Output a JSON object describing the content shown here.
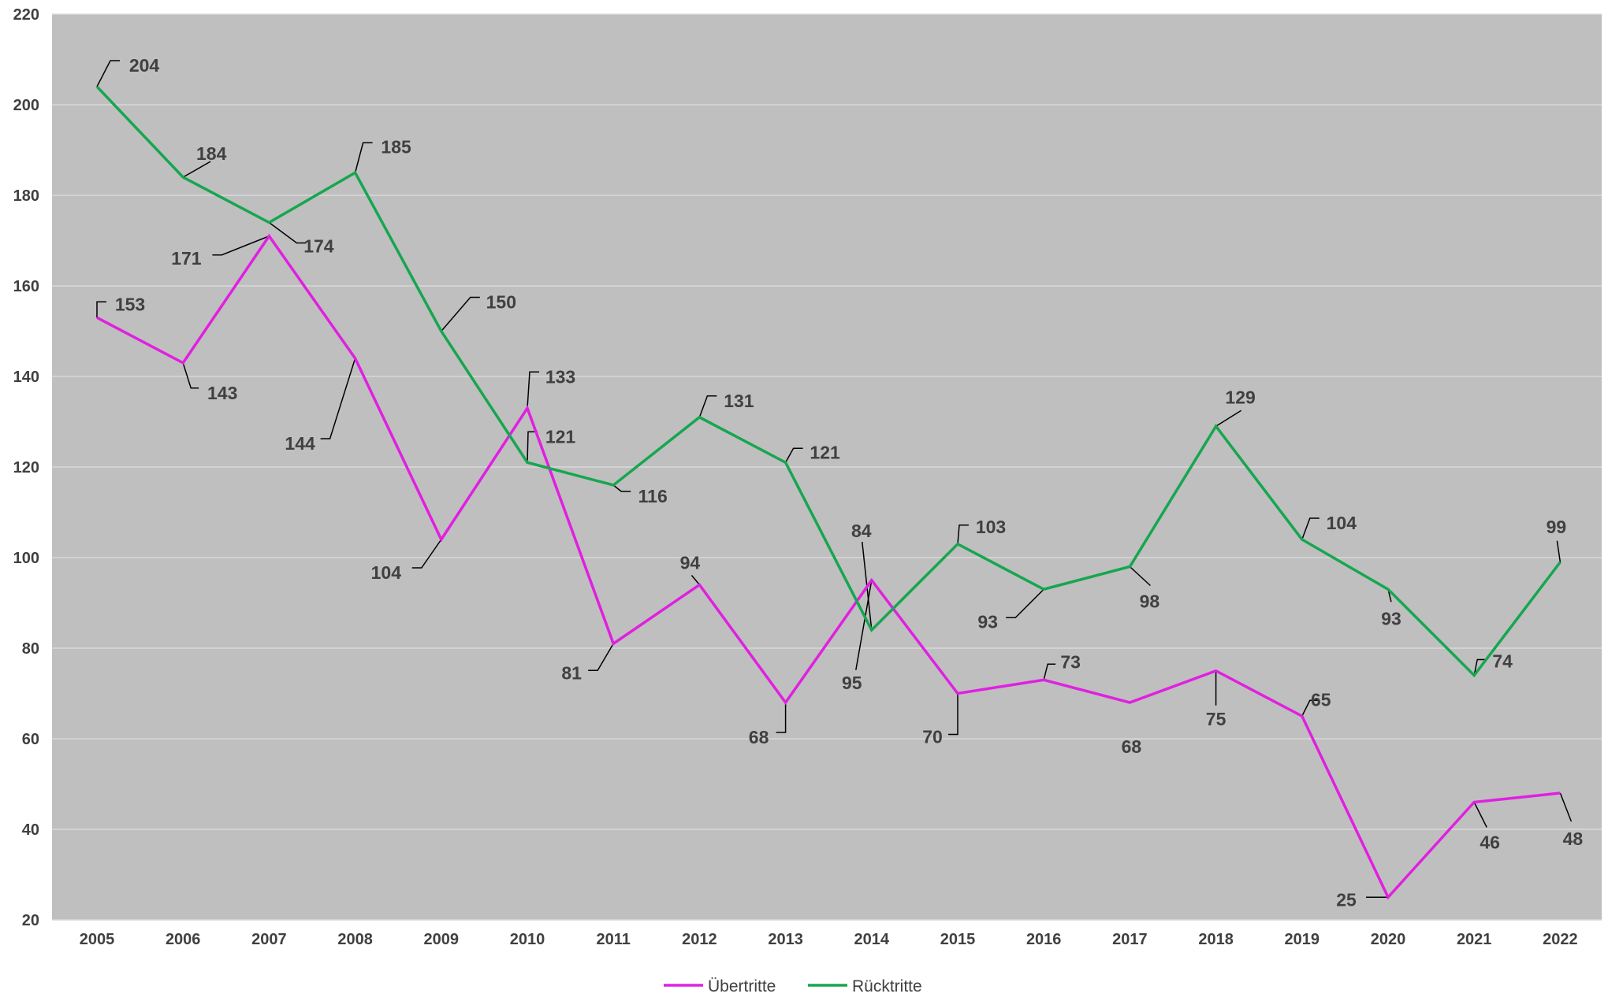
{
  "chart_data": {
    "type": "line",
    "categories": [
      "2005",
      "2006",
      "2007",
      "2008",
      "2009",
      "2010",
      "2011",
      "2012",
      "2013",
      "2014",
      "2015",
      "2016",
      "2017",
      "2018",
      "2019",
      "2020",
      "2021",
      "2022"
    ],
    "series": [
      {
        "name": "Übertritte",
        "color": "#e020e0",
        "values": [
          153,
          143,
          171,
          144,
          104,
          133,
          81,
          94,
          68,
          95,
          70,
          73,
          68,
          75,
          65,
          25,
          46,
          48
        ]
      },
      {
        "name": "Rücktritte",
        "color": "#16a64f",
        "values": [
          204,
          184,
          174,
          185,
          150,
          121,
          116,
          131,
          121,
          84,
          103,
          93,
          98,
          129,
          104,
          93,
          74,
          99
        ]
      }
    ],
    "ylim": [
      20,
      220
    ],
    "yticks": [
      "20",
      "40",
      "60",
      "80",
      "100",
      "120",
      "140",
      "160",
      "180",
      "200",
      "220"
    ],
    "grid": true,
    "plot_background": "#bfbfbf",
    "grid_color": "#d9d9d9",
    "legend_position": "bottom",
    "title": "",
    "xlabel": "",
    "ylabel": ""
  }
}
